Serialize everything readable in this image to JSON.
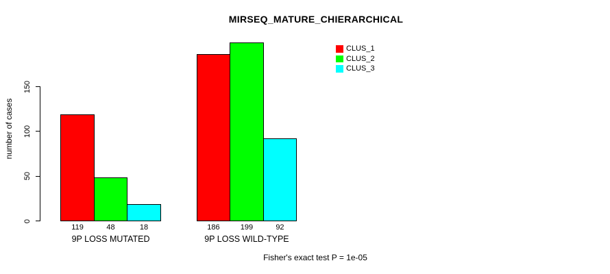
{
  "chart_data": {
    "type": "bar",
    "title": "MIRSEQ_MATURE_CHIERARCHICAL",
    "ylabel": "number of cases",
    "xlabel": "",
    "caption": "Fisher's exact test P = 1e-05",
    "categories": [
      "9P LOSS MUTATED",
      "9P LOSS WILD-TYPE"
    ],
    "series": [
      {
        "name": "CLUS_1",
        "color": "#ff0000",
        "values": [
          119,
          186
        ]
      },
      {
        "name": "CLUS_2",
        "color": "#00ff00",
        "values": [
          48,
          199
        ]
      },
      {
        "name": "CLUS_3",
        "color": "#00ffff",
        "values": [
          18,
          92
        ]
      }
    ],
    "bar_value_labels": [
      [
        "119",
        "48",
        "18"
      ],
      [
        "186",
        "199",
        "92"
      ]
    ],
    "yticks": [
      "0",
      "50",
      "100",
      "150"
    ],
    "ylim": [
      0,
      205
    ],
    "grid": false,
    "legend_position": "top-right",
    "background": "#ffffff",
    "bar_border_color": "#000000"
  }
}
